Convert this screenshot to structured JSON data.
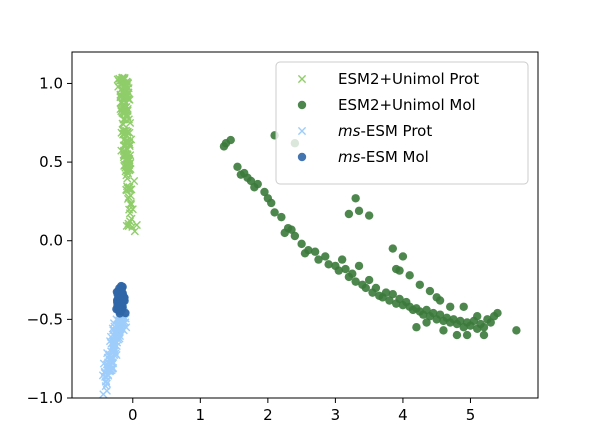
{
  "chart_data": {
    "type": "scatter",
    "title": "",
    "xlabel": "",
    "ylabel": "",
    "xlim": [
      -0.9,
      6.0
    ],
    "ylim": [
      -1.0,
      1.2
    ],
    "xticks": [
      0,
      1,
      2,
      3,
      4,
      5
    ],
    "xtick_labels": [
      "0",
      "1",
      "2",
      "3",
      "4",
      "5"
    ],
    "yticks": [
      -1.0,
      -0.5,
      0.0,
      0.5,
      1.0
    ],
    "ytick_labels": [
      "−1.0",
      "−0.5",
      "0.0",
      "0.5",
      "1.0"
    ],
    "grid": false,
    "legend_position": "top-right",
    "series": [
      {
        "name": "ESM2+Unimol Prot",
        "legend_label": {
          "prefix": "ESM2+Unimol Prot",
          "italic": "",
          "suffix": ""
        },
        "marker": "x",
        "color": "#8fcd6a",
        "cluster": {
          "x_center": -0.13,
          "x_spread": 0.07,
          "y_min": 0.05,
          "y_max": 1.04,
          "n": 150
        },
        "points": [
          [
            -0.2,
            1.03
          ],
          [
            -0.15,
            1.02
          ],
          [
            -0.07,
            1.0
          ],
          [
            -0.18,
            0.96
          ],
          [
            -0.1,
            0.92
          ],
          [
            -0.16,
            0.88
          ],
          [
            -0.12,
            0.84
          ],
          [
            -0.08,
            0.8
          ],
          [
            -0.14,
            0.74
          ],
          [
            -0.1,
            0.7
          ],
          [
            -0.13,
            0.64
          ],
          [
            -0.08,
            0.58
          ],
          [
            -0.05,
            0.52
          ],
          [
            -0.1,
            0.48
          ],
          [
            0.02,
            0.38
          ],
          [
            -0.05,
            0.34
          ],
          [
            0.0,
            0.2
          ],
          [
            -0.02,
            0.14
          ],
          [
            0.06,
            0.1
          ],
          [
            0.03,
            0.06
          ]
        ]
      },
      {
        "name": "ESM2+Unimol Mol",
        "legend_label": {
          "prefix": "ESM2+Unimol Mol",
          "italic": "",
          "suffix": ""
        },
        "marker": "o",
        "color": "#3b7a3b",
        "points": [
          [
            1.35,
            0.6
          ],
          [
            1.38,
            0.62
          ],
          [
            1.45,
            0.64
          ],
          [
            1.55,
            0.47
          ],
          [
            1.6,
            0.42
          ],
          [
            1.65,
            0.43
          ],
          [
            1.7,
            0.4
          ],
          [
            1.75,
            0.38
          ],
          [
            1.8,
            0.34
          ],
          [
            1.85,
            0.36
          ],
          [
            1.95,
            0.31
          ],
          [
            2.0,
            0.27
          ],
          [
            2.05,
            0.24
          ],
          [
            2.1,
            0.18
          ],
          [
            2.2,
            0.15
          ],
          [
            2.3,
            0.08
          ],
          [
            2.35,
            0.07
          ],
          [
            2.4,
            0.62
          ],
          [
            2.1,
            0.67
          ],
          [
            2.25,
            0.05
          ],
          [
            2.4,
            0.03
          ],
          [
            2.5,
            -0.02
          ],
          [
            2.6,
            -0.06
          ],
          [
            2.55,
            -0.08
          ],
          [
            2.7,
            -0.07
          ],
          [
            2.75,
            -0.12
          ],
          [
            2.85,
            -0.1
          ],
          [
            2.9,
            -0.15
          ],
          [
            3.0,
            -0.16
          ],
          [
            3.05,
            -0.19
          ],
          [
            3.1,
            -0.12
          ],
          [
            3.15,
            -0.18
          ],
          [
            3.2,
            -0.23
          ],
          [
            3.25,
            -0.21
          ],
          [
            3.3,
            -0.26
          ],
          [
            3.35,
            -0.16
          ],
          [
            3.4,
            -0.28
          ],
          [
            3.45,
            -0.3
          ],
          [
            3.5,
            -0.25
          ],
          [
            3.55,
            -0.33
          ],
          [
            3.6,
            -0.3
          ],
          [
            3.65,
            -0.35
          ],
          [
            3.7,
            -0.36
          ],
          [
            3.75,
            -0.33
          ],
          [
            3.8,
            -0.38
          ],
          [
            3.85,
            -0.34
          ],
          [
            3.9,
            -0.4
          ],
          [
            3.95,
            -0.37
          ],
          [
            4.0,
            -0.41
          ],
          [
            4.05,
            -0.39
          ],
          [
            4.1,
            -0.42
          ],
          [
            4.15,
            -0.44
          ],
          [
            4.2,
            -0.43
          ],
          [
            4.25,
            -0.45
          ],
          [
            4.3,
            -0.47
          ],
          [
            4.35,
            -0.44
          ],
          [
            4.4,
            -0.48
          ],
          [
            4.45,
            -0.46
          ],
          [
            4.5,
            -0.5
          ],
          [
            4.55,
            -0.47
          ],
          [
            4.6,
            -0.51
          ],
          [
            4.65,
            -0.49
          ],
          [
            4.7,
            -0.52
          ],
          [
            4.75,
            -0.5
          ],
          [
            4.8,
            -0.53
          ],
          [
            4.85,
            -0.51
          ],
          [
            4.9,
            -0.55
          ],
          [
            4.95,
            -0.52
          ],
          [
            5.0,
            -0.54
          ],
          [
            5.05,
            -0.51
          ],
          [
            5.1,
            -0.56
          ],
          [
            5.15,
            -0.53
          ],
          [
            5.2,
            -0.55
          ],
          [
            5.25,
            -0.5
          ],
          [
            5.3,
            -0.52
          ],
          [
            5.35,
            -0.48
          ],
          [
            5.4,
            -0.46
          ],
          [
            5.68,
            -0.57
          ],
          [
            4.6,
            -0.57
          ],
          [
            4.7,
            -0.42
          ],
          [
            4.2,
            -0.55
          ],
          [
            4.35,
            -0.52
          ],
          [
            4.8,
            -0.6
          ],
          [
            4.9,
            -0.42
          ],
          [
            4.5,
            -0.36
          ],
          [
            4.4,
            -0.32
          ],
          [
            4.25,
            -0.28
          ],
          [
            4.1,
            -0.22
          ],
          [
            3.95,
            -0.19
          ],
          [
            3.85,
            -0.05
          ],
          [
            4.0,
            -0.1
          ],
          [
            3.3,
            0.27
          ],
          [
            3.2,
            0.17
          ],
          [
            3.35,
            0.19
          ],
          [
            3.5,
            0.16
          ],
          [
            3.9,
            -0.18
          ],
          [
            4.55,
            -0.38
          ],
          [
            5.1,
            -0.48
          ],
          [
            5.2,
            -0.6
          ],
          [
            4.95,
            -0.6
          ]
        ]
      },
      {
        "name": "ms-ESM Prot",
        "legend_label": {
          "prefix": "",
          "italic": "ms",
          "suffix": "-ESM Prot"
        },
        "marker": "x",
        "color": "#9ecdfb",
        "cluster": {
          "x_start": -0.4,
          "x_end": -0.13,
          "y_start": -0.88,
          "y_end": -0.45,
          "spread": 0.05,
          "n": 130
        },
        "points": []
      },
      {
        "name": "ms-ESM Mol",
        "legend_label": {
          "prefix": "",
          "italic": "ms",
          "suffix": "-ESM Mol"
        },
        "marker": "o",
        "color": "#2f66a8",
        "cluster": {
          "x_center": -0.18,
          "x_spread": 0.07,
          "y_center": -0.37,
          "y_spread": 0.05,
          "n": 80
        },
        "points": []
      }
    ]
  }
}
